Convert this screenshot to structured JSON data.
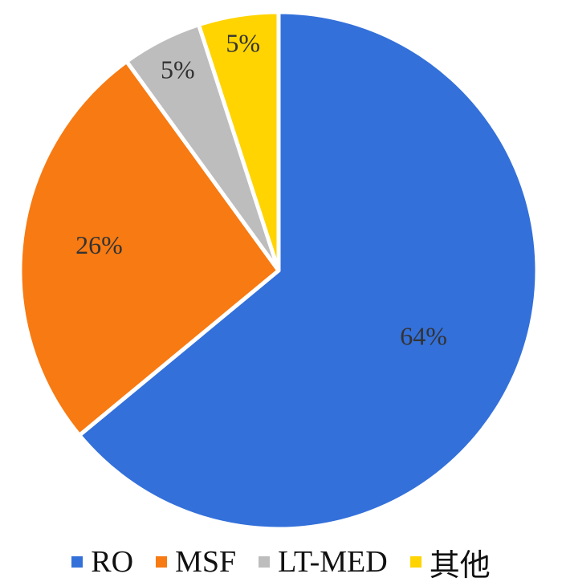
{
  "chart_data": {
    "type": "pie",
    "title": "",
    "legend_position": "bottom",
    "slices": [
      {
        "name": "RO",
        "value": 64,
        "label": "64%",
        "color": "#3370DA"
      },
      {
        "name": "MSF",
        "value": 26,
        "label": "26%",
        "color": "#F77A12"
      },
      {
        "name": "LT-MED",
        "value": 5,
        "label": "5%",
        "color": "#BDBDBD"
      },
      {
        "name": "其他",
        "value": 5,
        "label": "5%",
        "color": "#FFD400"
      }
    ]
  }
}
